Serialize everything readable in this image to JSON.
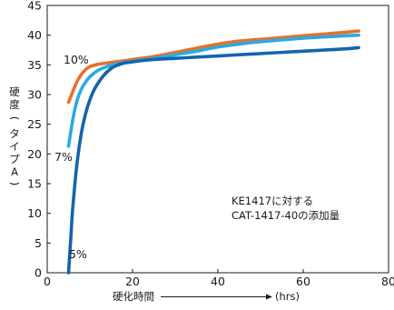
{
  "chart_data": {
    "type": "line",
    "title": "",
    "xlabel": "硬化時間",
    "xunit": "(hrs)",
    "ylabel_chars": [
      "硬",
      "度",
      "(",
      "タ",
      "イ",
      "プ",
      "A",
      ")"
    ],
    "xlim": [
      0,
      80
    ],
    "ylim": [
      0,
      45
    ],
    "xticks": [
      0,
      20,
      40,
      60,
      80
    ],
    "yticks": [
      0,
      5,
      10,
      15,
      20,
      25,
      30,
      35,
      40,
      45
    ],
    "grid": false,
    "annotation": [
      "KE1417に対する",
      "CAT-1417-40の添加量"
    ],
    "series": [
      {
        "name": "10%",
        "color": "#e8702a",
        "x": [
          5,
          6,
          7,
          8,
          9,
          10,
          12,
          14,
          16,
          18,
          20,
          25,
          30,
          35,
          40,
          45,
          50,
          55,
          60,
          65,
          70,
          73
        ],
        "y": [
          28.7,
          30.5,
          32.2,
          33.4,
          34.2,
          34.7,
          35.1,
          35.3,
          35.5,
          35.7,
          35.9,
          36.4,
          37.1,
          37.8,
          38.5,
          39.0,
          39.3,
          39.6,
          39.9,
          40.2,
          40.5,
          40.7
        ]
      },
      {
        "name": "7%",
        "color": "#29abe2",
        "x": [
          5,
          6,
          7,
          8,
          9,
          10,
          12,
          14,
          16,
          18,
          20,
          25,
          30,
          35,
          40,
          45,
          50,
          55,
          60,
          65,
          70,
          73
        ],
        "y": [
          21.3,
          25.8,
          29.0,
          30.9,
          32.1,
          33.0,
          34.1,
          34.7,
          35.1,
          35.4,
          35.6,
          36.1,
          36.7,
          37.3,
          38.0,
          38.5,
          38.9,
          39.2,
          39.5,
          39.7,
          39.9,
          40.0
        ]
      },
      {
        "name": "5%",
        "color": "#1464ad",
        "x": [
          5,
          5.5,
          6,
          7,
          8,
          9,
          10,
          11,
          12,
          13,
          14,
          15,
          16,
          18,
          20,
          22,
          25,
          30,
          35,
          40,
          45,
          50,
          55,
          60,
          65,
          70,
          73
        ],
        "y": [
          0,
          5.5,
          11.0,
          18.5,
          23.5,
          26.8,
          29.1,
          30.8,
          32.0,
          33.0,
          33.8,
          34.4,
          34.8,
          35.3,
          35.5,
          35.7,
          35.9,
          36.1,
          36.3,
          36.5,
          36.7,
          36.9,
          37.1,
          37.3,
          37.5,
          37.7,
          37.9
        ]
      }
    ]
  }
}
